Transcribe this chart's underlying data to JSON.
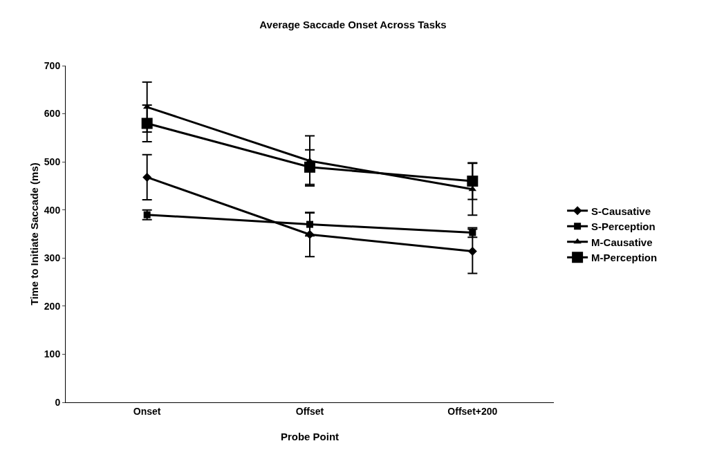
{
  "chart_data": {
    "type": "line",
    "title": "Average Saccade Onset Across Tasks",
    "xlabel": "Probe Point",
    "ylabel": "Time to Initiate Saccade (ms)",
    "categories": [
      "Onset",
      "Offset",
      "Offset+200"
    ],
    "ylim": [
      0,
      700
    ],
    "yticks": [
      0,
      100,
      200,
      300,
      400,
      500,
      600,
      700
    ],
    "grid": false,
    "legend": "right",
    "line_style": "solid",
    "series": [
      {
        "name": "S-Causative",
        "color": "#000000",
        "marker": "diamond",
        "values": [
          468,
          349,
          314
        ],
        "errors": [
          47,
          46,
          46
        ]
      },
      {
        "name": "S-Perception",
        "color": "#000000",
        "marker": "square",
        "values": [
          390,
          370,
          353
        ],
        "errors": [
          10,
          24,
          10
        ]
      },
      {
        "name": "M-Causative",
        "color": "#000000",
        "marker": "triangle",
        "values": [
          614,
          502,
          443
        ],
        "errors": [
          52,
          52,
          54
        ]
      },
      {
        "name": "M-Perception",
        "color": "#000000",
        "marker": "square",
        "values": [
          580,
          489,
          460
        ],
        "errors": [
          38,
          36,
          38
        ]
      }
    ]
  }
}
